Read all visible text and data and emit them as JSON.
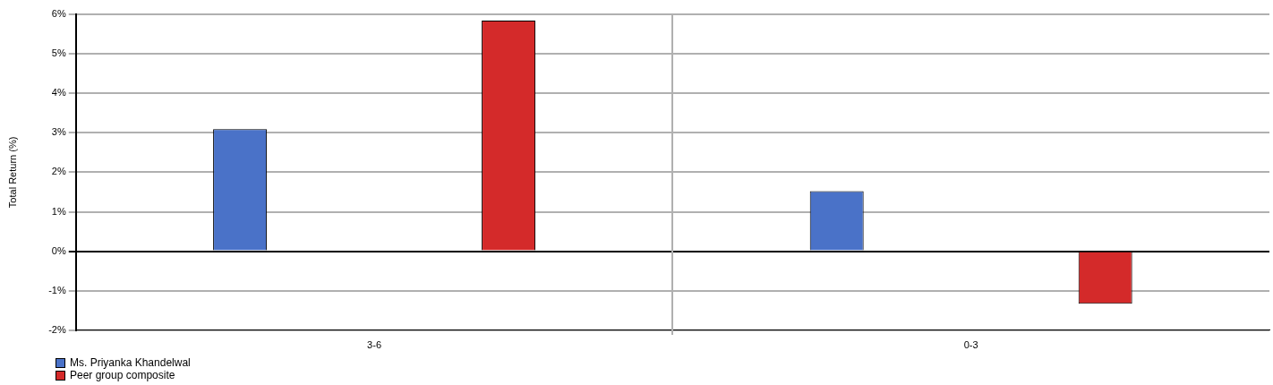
{
  "chart_data": {
    "type": "bar",
    "ylabel": "Total Return (%)",
    "categories": [
      "3-6",
      "0-3"
    ],
    "series": [
      {
        "name": "Ms. Priyanka Khandelwal",
        "color": "#4a72c8",
        "values": [
          3.09,
          1.52
        ]
      },
      {
        "name": "Peer group composite",
        "color": "#d42a2a",
        "values": [
          5.84,
          -1.33
        ]
      }
    ],
    "ylim": [
      -2,
      6
    ],
    "yticks": [
      {
        "value": -2,
        "label": "-2%"
      },
      {
        "value": -1,
        "label": "-1%"
      },
      {
        "value": 0,
        "label": "0%"
      },
      {
        "value": 1,
        "label": "1%"
      },
      {
        "value": 2,
        "label": "2%"
      },
      {
        "value": 3,
        "label": "3%"
      },
      {
        "value": 4,
        "label": "4%"
      },
      {
        "value": 5,
        "label": "5%"
      },
      {
        "value": 6,
        "label": "6%"
      }
    ],
    "grid": "y",
    "legend": "bottom left"
  }
}
